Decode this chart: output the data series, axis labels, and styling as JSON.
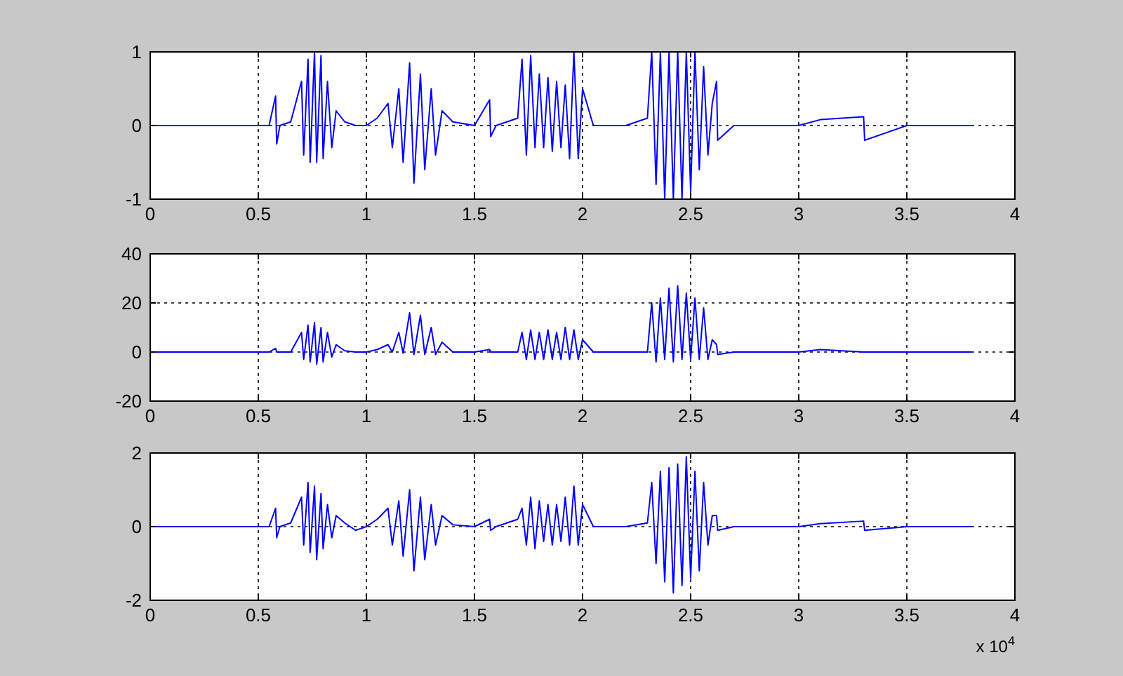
{
  "chart_data": [
    {
      "type": "line",
      "x": [
        0,
        0.55,
        0.58,
        0.585,
        0.6,
        0.65,
        0.7,
        0.71,
        0.73,
        0.74,
        0.76,
        0.77,
        0.79,
        0.8,
        0.82,
        0.84,
        0.86,
        0.9,
        0.95,
        1.0,
        1.05,
        1.1,
        1.12,
        1.15,
        1.17,
        1.2,
        1.22,
        1.25,
        1.27,
        1.3,
        1.32,
        1.35,
        1.4,
        1.5,
        1.57,
        1.575,
        1.6,
        1.7,
        1.72,
        1.74,
        1.76,
        1.78,
        1.8,
        1.82,
        1.84,
        1.86,
        1.88,
        1.9,
        1.92,
        1.94,
        1.96,
        1.98,
        2.0,
        2.05,
        2.2,
        2.3,
        2.32,
        2.34,
        2.36,
        2.38,
        2.4,
        2.42,
        2.44,
        2.46,
        2.48,
        2.5,
        2.52,
        2.54,
        2.56,
        2.58,
        2.6,
        2.62,
        2.625,
        2.7,
        3.0,
        3.1,
        3.3,
        3.305,
        3.5,
        3.8
      ],
      "series": [
        {
          "color": "#0000ff",
          "values": [
            0,
            0,
            0.4,
            -0.25,
            0,
            0.05,
            0.6,
            -0.4,
            0.9,
            -0.5,
            1,
            -0.5,
            0.95,
            -0.45,
            0.6,
            -0.3,
            0.2,
            0.05,
            0,
            0,
            0.1,
            0.3,
            -0.3,
            0.5,
            -0.5,
            0.85,
            -0.78,
            0.7,
            -0.6,
            0.5,
            -0.4,
            0.2,
            0.05,
            0,
            0.35,
            -0.15,
            0,
            0.1,
            0.9,
            -0.4,
            0.95,
            -0.3,
            0.7,
            -0.3,
            0.65,
            -0.35,
            0.6,
            -0.3,
            0.55,
            -0.45,
            1,
            -0.45,
            0.5,
            0,
            0,
            0.1,
            1,
            -0.8,
            1,
            -1,
            1,
            -1,
            1,
            -1,
            1,
            -0.9,
            1,
            -0.6,
            0.8,
            -0.4,
            0.3,
            0.6,
            -0.2,
            0,
            0,
            0.08,
            0.12,
            -0.2,
            0,
            0
          ]
        }
      ],
      "xlim": [
        0,
        4
      ],
      "xticks": [
        0,
        0.5,
        1,
        1.5,
        2,
        2.5,
        3,
        3.5,
        4
      ],
      "ylim": [
        -1,
        1
      ],
      "yticks": [
        -1,
        0,
        1
      ],
      "grid": true
    },
    {
      "type": "line",
      "x": [
        0,
        0.55,
        0.58,
        0.585,
        0.6,
        0.65,
        0.7,
        0.71,
        0.73,
        0.74,
        0.76,
        0.77,
        0.79,
        0.8,
        0.82,
        0.84,
        0.86,
        0.9,
        0.95,
        1.0,
        1.05,
        1.1,
        1.12,
        1.15,
        1.17,
        1.2,
        1.22,
        1.25,
        1.27,
        1.3,
        1.32,
        1.35,
        1.4,
        1.5,
        1.57,
        1.575,
        1.6,
        1.7,
        1.72,
        1.74,
        1.76,
        1.78,
        1.8,
        1.82,
        1.84,
        1.86,
        1.88,
        1.9,
        1.92,
        1.94,
        1.96,
        1.98,
        2.0,
        2.05,
        2.2,
        2.3,
        2.32,
        2.34,
        2.36,
        2.38,
        2.4,
        2.42,
        2.44,
        2.46,
        2.48,
        2.5,
        2.52,
        2.54,
        2.56,
        2.58,
        2.6,
        2.62,
        2.625,
        2.7,
        3.0,
        3.1,
        3.3,
        3.305,
        3.5,
        3.8
      ],
      "series": [
        {
          "color": "#0000ff",
          "values": [
            0,
            0,
            1.5,
            0,
            0,
            0,
            8,
            -3,
            11,
            -4,
            12,
            -5,
            10,
            -4,
            8,
            -2,
            3,
            0.5,
            0,
            0,
            1,
            3,
            0,
            8,
            -0.5,
            16,
            -1,
            15,
            -1,
            10,
            -1,
            4,
            0,
            0,
            1,
            0,
            0,
            0,
            8,
            -3,
            9,
            -3,
            8,
            -3,
            9,
            -3,
            8,
            -3,
            10,
            -3,
            9,
            -3,
            5,
            0,
            0,
            0,
            20,
            -4,
            22,
            -3,
            26,
            -4,
            27,
            -3,
            24,
            -3,
            22,
            -3,
            18,
            -3,
            5,
            3,
            -1,
            0,
            0,
            1,
            0,
            0,
            0,
            0
          ]
        }
      ],
      "xlim": [
        0,
        4
      ],
      "xticks": [
        0,
        0.5,
        1,
        1.5,
        2,
        2.5,
        3,
        3.5,
        4
      ],
      "ylim": [
        -20,
        40
      ],
      "yticks": [
        -20,
        0,
        20,
        40
      ],
      "grid": true
    },
    {
      "type": "line",
      "x": [
        0,
        0.55,
        0.58,
        0.585,
        0.6,
        0.65,
        0.7,
        0.71,
        0.73,
        0.74,
        0.76,
        0.77,
        0.79,
        0.8,
        0.82,
        0.84,
        0.86,
        0.9,
        0.95,
        1.0,
        1.05,
        1.1,
        1.12,
        1.15,
        1.17,
        1.2,
        1.22,
        1.25,
        1.27,
        1.3,
        1.32,
        1.35,
        1.4,
        1.5,
        1.57,
        1.575,
        1.6,
        1.7,
        1.72,
        1.74,
        1.76,
        1.78,
        1.8,
        1.82,
        1.84,
        1.86,
        1.88,
        1.9,
        1.92,
        1.94,
        1.96,
        1.98,
        2.0,
        2.05,
        2.2,
        2.3,
        2.32,
        2.34,
        2.36,
        2.38,
        2.4,
        2.42,
        2.44,
        2.46,
        2.48,
        2.5,
        2.52,
        2.54,
        2.56,
        2.58,
        2.6,
        2.62,
        2.625,
        2.7,
        3.0,
        3.1,
        3.3,
        3.305,
        3.5,
        3.8
      ],
      "series": [
        {
          "color": "#0000ff",
          "values": [
            0,
            0,
            0.5,
            -0.3,
            0,
            0.1,
            0.8,
            -0.5,
            1.2,
            -0.7,
            1.1,
            -0.9,
            0.9,
            -0.6,
            0.6,
            -0.3,
            0.3,
            0.1,
            -0.1,
            0,
            0.2,
            0.5,
            -0.5,
            0.7,
            -0.8,
            1.0,
            -1.2,
            0.8,
            -0.9,
            0.6,
            -0.5,
            0.3,
            0.05,
            0,
            0.2,
            -0.1,
            0,
            0.2,
            0.5,
            -0.5,
            0.8,
            -0.6,
            0.7,
            -0.4,
            0.6,
            -0.5,
            0.6,
            -0.4,
            0.8,
            -0.5,
            1.1,
            -0.5,
            0.6,
            0,
            0,
            0.1,
            1.2,
            -1,
            1.5,
            -1.5,
            1.6,
            -1.8,
            1.7,
            -1.6,
            1.9,
            -1.4,
            1.5,
            -1.2,
            1.2,
            -0.5,
            0.3,
            0.3,
            -0.1,
            0,
            0,
            0.08,
            0.15,
            -0.1,
            0,
            0
          ]
        }
      ],
      "xlim": [
        0,
        4
      ],
      "xticks": [
        0,
        0.5,
        1,
        1.5,
        2,
        2.5,
        3,
        3.5,
        4
      ],
      "ylim": [
        -2,
        2
      ],
      "yticks": [
        -2,
        0,
        2
      ],
      "grid": true,
      "annotations": [
        "x 10$^{4}$"
      ]
    }
  ]
}
